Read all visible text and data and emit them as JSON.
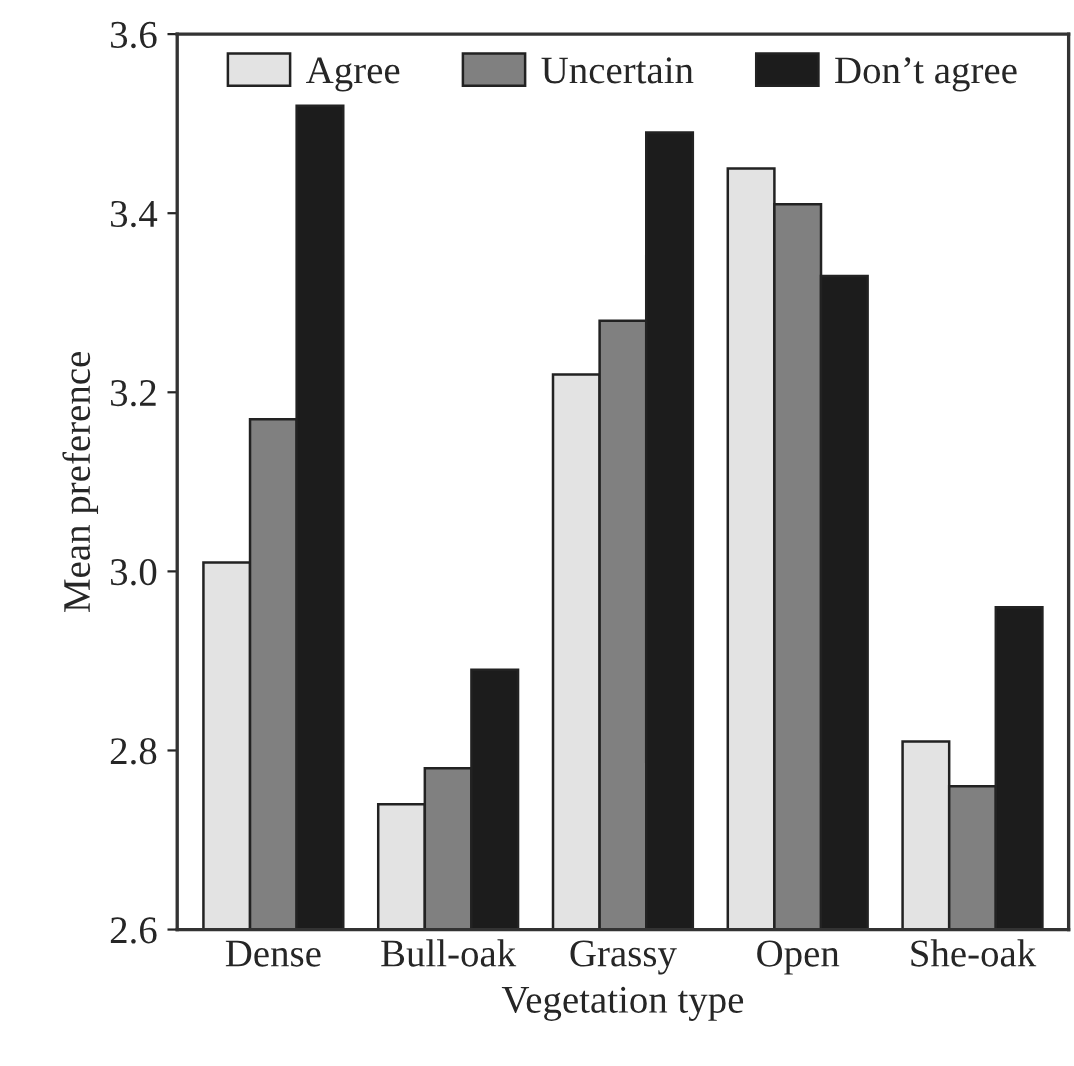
{
  "chart_data": {
    "type": "bar",
    "xlabel": "Vegetation type",
    "ylabel": "Mean preference",
    "categories": [
      "Dense",
      "Bull-oak",
      "Grassy",
      "Open",
      "She-oak"
    ],
    "series": [
      {
        "name": "Agree",
        "color": "#e3e3e3",
        "values": [
          3.01,
          2.74,
          3.22,
          3.45,
          2.81
        ]
      },
      {
        "name": "Uncertain",
        "color": "#808080",
        "values": [
          3.17,
          2.78,
          3.28,
          3.41,
          2.76
        ]
      },
      {
        "name": "Don’t agree",
        "color": "#1c1c1c",
        "values": [
          3.52,
          2.89,
          3.49,
          3.33,
          2.96
        ]
      }
    ],
    "ylim": [
      2.6,
      3.6
    ],
    "yticks": [
      {
        "value": 2.6,
        "label": "2.6"
      },
      {
        "value": 2.8,
        "label": "2.8"
      },
      {
        "value": 3.0,
        "label": "3.0"
      },
      {
        "value": 3.2,
        "label": "3.2"
      },
      {
        "value": 3.4,
        "label": "3.4"
      },
      {
        "value": 3.6,
        "label": "3.6"
      }
    ],
    "grid": false,
    "legend": "top"
  }
}
